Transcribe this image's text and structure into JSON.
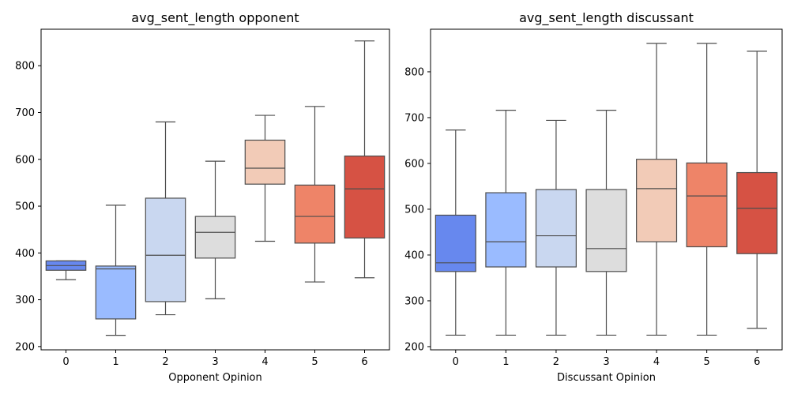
{
  "chart_data": [
    {
      "type": "box",
      "title": "avg_sent_length opponent",
      "xlabel": "Opponent Opinion",
      "ylabel": "",
      "categories": [
        "0",
        "1",
        "2",
        "3",
        "4",
        "5",
        "6"
      ],
      "ylim": [
        193,
        878
      ],
      "yticks": [
        200,
        300,
        400,
        500,
        600,
        700,
        800
      ],
      "colors": [
        "#6788ee",
        "#9abbff",
        "#c9d7f0",
        "#dddddd",
        "#f2cbb7",
        "#ee8468",
        "#d65244"
      ],
      "boxes": [
        {
          "category": "0",
          "whisker_low": 343,
          "q1": 363,
          "median": 373,
          "q3": 383,
          "whisker_high": 383
        },
        {
          "category": "1",
          "whisker_low": 224,
          "q1": 259,
          "median": 366,
          "q3": 372,
          "whisker_high": 502
        },
        {
          "category": "2",
          "whisker_low": 268,
          "q1": 296,
          "median": 395,
          "q3": 517,
          "whisker_high": 680
        },
        {
          "category": "3",
          "whisker_low": 302,
          "q1": 389,
          "median": 444,
          "q3": 478,
          "whisker_high": 596
        },
        {
          "category": "4",
          "whisker_low": 425,
          "q1": 547,
          "median": 581,
          "q3": 641,
          "whisker_high": 694
        },
        {
          "category": "5",
          "whisker_low": 338,
          "q1": 421,
          "median": 478,
          "q3": 545,
          "whisker_high": 713
        },
        {
          "category": "6",
          "whisker_low": 347,
          "q1": 432,
          "median": 537,
          "q3": 607,
          "whisker_high": 853
        }
      ]
    },
    {
      "type": "box",
      "title": "avg_sent_length discussant",
      "xlabel": "Discussant Opinion",
      "ylabel": "",
      "categories": [
        "0",
        "1",
        "2",
        "3",
        "4",
        "5",
        "6"
      ],
      "ylim": [
        193,
        893
      ],
      "yticks": [
        200,
        300,
        400,
        500,
        600,
        700,
        800
      ],
      "colors": [
        "#6788ee",
        "#9abbff",
        "#c9d7f0",
        "#dddddd",
        "#f2cbb7",
        "#ee8468",
        "#d65244"
      ],
      "boxes": [
        {
          "category": "0",
          "whisker_low": 225,
          "q1": 364,
          "median": 383,
          "q3": 487,
          "whisker_high": 673
        },
        {
          "category": "1",
          "whisker_low": 225,
          "q1": 374,
          "median": 429,
          "q3": 536,
          "whisker_high": 716
        },
        {
          "category": "2",
          "whisker_low": 225,
          "q1": 374,
          "median": 442,
          "q3": 543,
          "whisker_high": 694
        },
        {
          "category": "3",
          "whisker_low": 225,
          "q1": 364,
          "median": 414,
          "q3": 543,
          "whisker_high": 716
        },
        {
          "category": "4",
          "whisker_low": 225,
          "q1": 429,
          "median": 545,
          "q3": 609,
          "whisker_high": 862
        },
        {
          "category": "5",
          "whisker_low": 225,
          "q1": 418,
          "median": 529,
          "q3": 601,
          "whisker_high": 862
        },
        {
          "category": "6",
          "whisker_low": 240,
          "q1": 403,
          "median": 502,
          "q3": 580,
          "whisker_high": 845
        }
      ]
    }
  ]
}
